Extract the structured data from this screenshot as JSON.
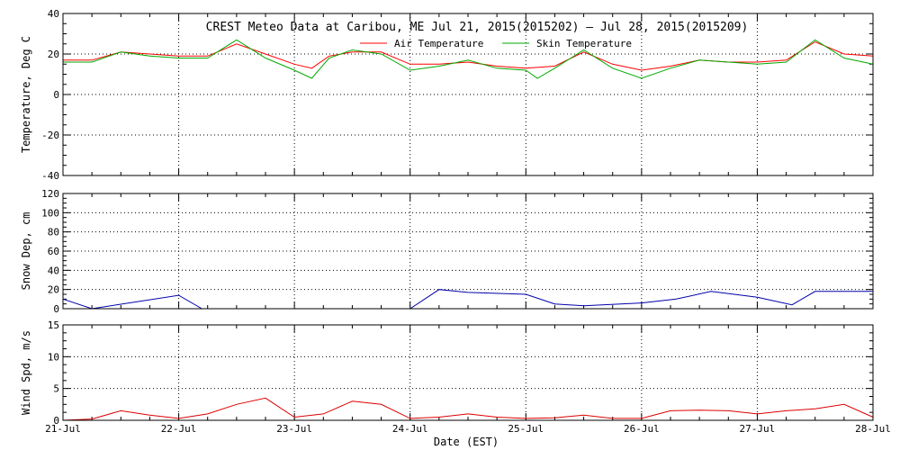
{
  "chart_data": {
    "type": "line",
    "title": "CREST Meteo Data at Caribou, ME   Jul 21, 2015(2015202) — Jul 28, 2015(2015209)",
    "xlabel": "Date (EST)",
    "x_ticks": [
      "21-Jul",
      "22-Jul",
      "23-Jul",
      "24-Jul",
      "25-Jul",
      "26-Jul",
      "27-Jul",
      "28-Jul"
    ],
    "xlim_days": [
      0,
      7
    ],
    "grid": true,
    "panels": [
      {
        "ylabel": "Temperature, Deg C",
        "ylim": [
          -40,
          40
        ],
        "yticks": [
          -40,
          -20,
          0,
          20,
          40
        ],
        "legend": "top-center",
        "series": [
          {
            "name": "Air Temperature",
            "color": "#ff0000",
            "points": [
              [
                0,
                17
              ],
              [
                0.25,
                17
              ],
              [
                0.5,
                21
              ],
              [
                0.75,
                20
              ],
              [
                1,
                19
              ],
              [
                1.25,
                19
              ],
              [
                1.5,
                25
              ],
              [
                1.75,
                20
              ],
              [
                2,
                15
              ],
              [
                2.15,
                13
              ],
              [
                2.3,
                19
              ],
              [
                2.5,
                21
              ],
              [
                2.75,
                21
              ],
              [
                3,
                15
              ],
              [
                3.25,
                15
              ],
              [
                3.5,
                16
              ],
              [
                3.75,
                14
              ],
              [
                4,
                13
              ],
              [
                4.25,
                14
              ],
              [
                4.5,
                21
              ],
              [
                4.75,
                15
              ],
              [
                5,
                12
              ],
              [
                5.25,
                14
              ],
              [
                5.5,
                17
              ],
              [
                5.75,
                16
              ],
              [
                6,
                16
              ],
              [
                6.25,
                17
              ],
              [
                6.5,
                26
              ],
              [
                6.75,
                20
              ],
              [
                7,
                19
              ]
            ]
          },
          {
            "name": "Skin Temperature",
            "color": "#00aa00",
            "points": [
              [
                0,
                16
              ],
              [
                0.25,
                16
              ],
              [
                0.5,
                21
              ],
              [
                0.75,
                19
              ],
              [
                1,
                18
              ],
              [
                1.25,
                18
              ],
              [
                1.5,
                27
              ],
              [
                1.75,
                18
              ],
              [
                2,
                12
              ],
              [
                2.15,
                8
              ],
              [
                2.3,
                18
              ],
              [
                2.5,
                22
              ],
              [
                2.75,
                20
              ],
              [
                3,
                12
              ],
              [
                3.25,
                14
              ],
              [
                3.5,
                17
              ],
              [
                3.75,
                13
              ],
              [
                4,
                12
              ],
              [
                4.1,
                8
              ],
              [
                4.25,
                13
              ],
              [
                4.5,
                22
              ],
              [
                4.75,
                13
              ],
              [
                5,
                8
              ],
              [
                5.25,
                13
              ],
              [
                5.5,
                17
              ],
              [
                5.75,
                16
              ],
              [
                6,
                15
              ],
              [
                6.25,
                16
              ],
              [
                6.5,
                27
              ],
              [
                6.75,
                18
              ],
              [
                7,
                15
              ]
            ]
          }
        ]
      },
      {
        "ylabel": "Snow Dep, cm",
        "ylim": [
          0,
          120
        ],
        "yticks": [
          0,
          20,
          40,
          60,
          80,
          100,
          120
        ],
        "series": [
          {
            "name": "",
            "color": "#0000aa",
            "points": [
              [
                0,
                10
              ],
              [
                0.25,
                0
              ],
              [
                1,
                14
              ],
              [
                1.2,
                0
              ],
              [
                2,
                0
              ],
              [
                3,
                0
              ],
              [
                3.25,
                20
              ],
              [
                3.5,
                17
              ],
              [
                4,
                15
              ],
              [
                4.25,
                5
              ],
              [
                4.5,
                3
              ],
              [
                5,
                6
              ],
              [
                5.3,
                10
              ],
              [
                5.6,
                18
              ],
              [
                6,
                12
              ],
              [
                6.3,
                4
              ],
              [
                6.5,
                18
              ],
              [
                7,
                18
              ]
            ]
          }
        ]
      },
      {
        "ylabel": "Wind Spd, m/s",
        "ylim": [
          0,
          15
        ],
        "yticks": [
          0,
          5,
          10,
          15
        ],
        "series": [
          {
            "name": "",
            "color": "#dd0000",
            "points": [
              [
                0,
                0
              ],
              [
                0.25,
                0.2
              ],
              [
                0.5,
                1.5
              ],
              [
                0.75,
                0.8
              ],
              [
                1,
                0.3
              ],
              [
                1.25,
                1
              ],
              [
                1.5,
                2.5
              ],
              [
                1.75,
                3.5
              ],
              [
                2,
                0.5
              ],
              [
                2.25,
                1
              ],
              [
                2.5,
                3
              ],
              [
                2.75,
                2.5
              ],
              [
                3,
                0.3
              ],
              [
                3.25,
                0.5
              ],
              [
                3.5,
                1
              ],
              [
                3.75,
                0.5
              ],
              [
                4,
                0.3
              ],
              [
                4.25,
                0.4
              ],
              [
                4.5,
                0.8
              ],
              [
                4.75,
                0.3
              ],
              [
                5,
                0.3
              ],
              [
                5.25,
                1.5
              ],
              [
                5.5,
                1.6
              ],
              [
                5.75,
                1.5
              ],
              [
                6,
                1
              ],
              [
                6.25,
                1.5
              ],
              [
                6.5,
                1.8
              ],
              [
                6.75,
                2.5
              ],
              [
                7,
                0.5
              ]
            ]
          }
        ]
      }
    ]
  }
}
